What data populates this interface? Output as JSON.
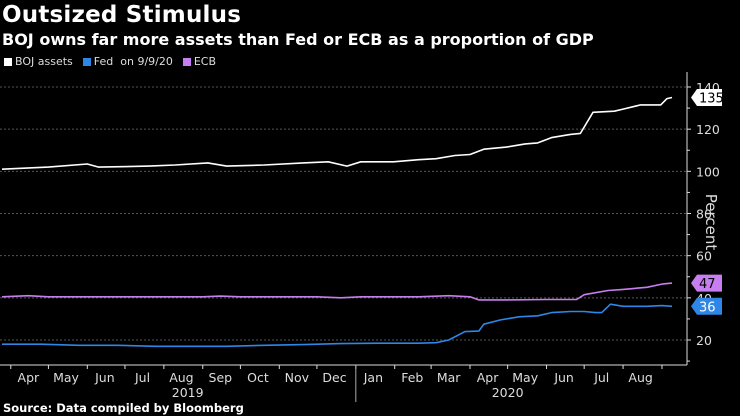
{
  "header": {
    "title": "Outsized Stimulus",
    "subtitle": "BOJ owns far more assets than Fed or ECB as a proportion of GDP"
  },
  "legend": {
    "items": [
      {
        "label": "BOJ assets",
        "color": "#ffffff"
      },
      {
        "label": "Fed  on 9/9/20",
        "color": "#2e86e6"
      },
      {
        "label": "ECB",
        "color": "#c77ef0"
      }
    ]
  },
  "footer": {
    "source": "Source: Data compiled by Bloomberg"
  },
  "chart_data": {
    "type": "line",
    "title": "Outsized Stimulus",
    "subtitle": "BOJ owns far more assets than Fed or ECB as a proportion of GDP",
    "xlabel": "",
    "ylabel": "Percent",
    "ylim": [
      10,
      145
    ],
    "yticks": [
      20,
      40,
      60,
      80,
      100,
      120,
      140
    ],
    "grid": true,
    "legend_position": "top-left",
    "x_range": [
      "2019-03-25",
      "2020-09-09"
    ],
    "month_ticks": [
      {
        "label": "Apr",
        "date": "2019-04-15"
      },
      {
        "label": "May",
        "date": "2019-05-15"
      },
      {
        "label": "Jun",
        "date": "2019-06-15"
      },
      {
        "label": "Jul",
        "date": "2019-07-15"
      },
      {
        "label": "Aug",
        "date": "2019-08-15"
      },
      {
        "label": "Sep",
        "date": "2019-09-15"
      },
      {
        "label": "Oct",
        "date": "2019-10-15"
      },
      {
        "label": "Nov",
        "date": "2019-11-15"
      },
      {
        "label": "Dec",
        "date": "2019-12-15"
      },
      {
        "label": "Jan",
        "date": "2020-01-15"
      },
      {
        "label": "Feb",
        "date": "2020-02-15"
      },
      {
        "label": "Mar",
        "date": "2020-03-15"
      },
      {
        "label": "Apr",
        "date": "2020-04-15"
      },
      {
        "label": "May",
        "date": "2020-05-15"
      },
      {
        "label": "Jun",
        "date": "2020-06-15"
      },
      {
        "label": "Jul",
        "date": "2020-07-15"
      },
      {
        "label": "Aug",
        "date": "2020-08-15"
      }
    ],
    "year_labels": [
      {
        "label": "2019",
        "date": "2019-08-20"
      },
      {
        "label": "2020",
        "date": "2020-05-01"
      }
    ],
    "year_divider": "2020-01-01",
    "series": [
      {
        "name": "BOJ assets",
        "color": "#ffffff",
        "last_value_label": "135",
        "points": [
          [
            "2019-03-25",
            101
          ],
          [
            "2019-05-01",
            102
          ],
          [
            "2019-06-01",
            103.5
          ],
          [
            "2019-06-10",
            102
          ],
          [
            "2019-07-20",
            102.5
          ],
          [
            "2019-08-10",
            103
          ],
          [
            "2019-09-05",
            104
          ],
          [
            "2019-09-20",
            102.5
          ],
          [
            "2019-10-20",
            103
          ],
          [
            "2019-11-20",
            104
          ],
          [
            "2019-12-10",
            104.5
          ],
          [
            "2019-12-25",
            102.5
          ],
          [
            "2020-01-05",
            104.5
          ],
          [
            "2020-01-31",
            104.5
          ],
          [
            "2020-02-20",
            105.5
          ],
          [
            "2020-03-05",
            106
          ],
          [
            "2020-03-20",
            107.5
          ],
          [
            "2020-04-01",
            108
          ],
          [
            "2020-04-12",
            110.5
          ],
          [
            "2020-04-30",
            111.5
          ],
          [
            "2020-05-15",
            113
          ],
          [
            "2020-05-25",
            113.5
          ],
          [
            "2020-06-05",
            116
          ],
          [
            "2020-06-20",
            117.5
          ],
          [
            "2020-06-28",
            118
          ],
          [
            "2020-07-08",
            128
          ],
          [
            "2020-07-25",
            128.5
          ],
          [
            "2020-08-01",
            129.5
          ],
          [
            "2020-08-15",
            131.5
          ],
          [
            "2020-08-31",
            131.5
          ],
          [
            "2020-09-05",
            134.5
          ],
          [
            "2020-09-09",
            135
          ]
        ]
      },
      {
        "name": "Fed",
        "color": "#2e86e6",
        "last_value_label": "36",
        "points": [
          [
            "2019-03-25",
            18
          ],
          [
            "2019-04-25",
            18
          ],
          [
            "2019-05-25",
            17.5
          ],
          [
            "2019-06-25",
            17.5
          ],
          [
            "2019-07-25",
            17
          ],
          [
            "2019-08-25",
            17
          ],
          [
            "2019-09-20",
            17
          ],
          [
            "2019-10-20",
            17.5
          ],
          [
            "2019-11-20",
            17.8
          ],
          [
            "2019-12-20",
            18.3
          ],
          [
            "2020-01-20",
            18.5
          ],
          [
            "2020-02-20",
            18.5
          ],
          [
            "2020-03-05",
            18.7
          ],
          [
            "2020-03-15",
            20
          ],
          [
            "2020-03-28",
            24
          ],
          [
            "2020-04-08",
            24.2
          ],
          [
            "2020-04-12",
            27.5
          ],
          [
            "2020-04-25",
            29.5
          ],
          [
            "2020-05-10",
            31
          ],
          [
            "2020-05-25",
            31.5
          ],
          [
            "2020-06-05",
            33
          ],
          [
            "2020-06-20",
            33.5
          ],
          [
            "2020-07-01",
            33.5
          ],
          [
            "2020-07-10",
            33
          ],
          [
            "2020-07-15",
            33
          ],
          [
            "2020-07-22",
            37
          ],
          [
            "2020-08-01",
            36
          ],
          [
            "2020-08-20",
            36
          ],
          [
            "2020-09-01",
            36.3
          ],
          [
            "2020-09-09",
            36
          ]
        ]
      },
      {
        "name": "ECB",
        "color": "#c77ef0",
        "last_value_label": "47",
        "points": [
          [
            "2019-03-25",
            40.5
          ],
          [
            "2019-04-15",
            41
          ],
          [
            "2019-05-01",
            40.5
          ],
          [
            "2019-07-01",
            40.5
          ],
          [
            "2019-09-01",
            40.5
          ],
          [
            "2019-09-15",
            40.8
          ],
          [
            "2019-10-01",
            40.5
          ],
          [
            "2019-12-01",
            40.5
          ],
          [
            "2019-12-20",
            40
          ],
          [
            "2020-01-05",
            40.5
          ],
          [
            "2020-02-20",
            40.5
          ],
          [
            "2020-03-15",
            41
          ],
          [
            "2020-04-01",
            40.5
          ],
          [
            "2020-04-08",
            39
          ],
          [
            "2020-05-01",
            39
          ],
          [
            "2020-06-01",
            39.2
          ],
          [
            "2020-06-25",
            39.2
          ],
          [
            "2020-07-01",
            41.5
          ],
          [
            "2020-07-20",
            43.5
          ],
          [
            "2020-08-01",
            44
          ],
          [
            "2020-08-20",
            45
          ],
          [
            "2020-09-01",
            46.5
          ],
          [
            "2020-09-09",
            47
          ]
        ]
      }
    ]
  }
}
